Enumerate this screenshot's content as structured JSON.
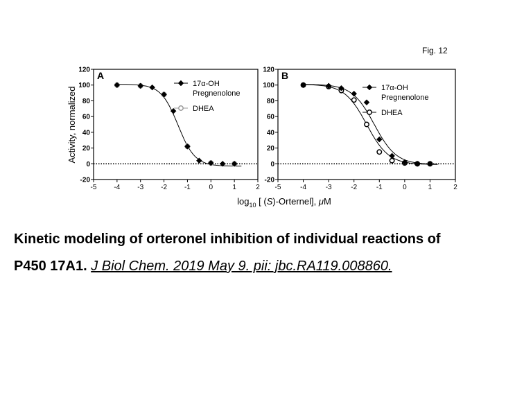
{
  "figure": {
    "label": "Fig. 12",
    "shared_ylabel": "Activity, normalized",
    "shared_xlabel_parts": {
      "prefix": "log",
      "sub": "10",
      "mid": " [ (",
      "italic": "S",
      "post": ")-Orternel], ",
      "unit_italic": "μ",
      "unit": "M"
    }
  },
  "caption": {
    "title_line1": "Kinetic modeling of orteronel inhibition of individual reactions of",
    "title_line2": "P450 17A1.",
    "citation": "J Biol Chem. 2019 May 9. pii: jbc.RA119.008860."
  },
  "chart_data": [
    {
      "type": "scatter",
      "panel_label": "A",
      "xlim": [
        -5,
        2
      ],
      "ylim": [
        -20,
        120
      ],
      "xticks": [
        "-5",
        "-4",
        "-3",
        "-2",
        "-1",
        "0",
        "1",
        "2"
      ],
      "yticks": [
        "-20",
        "0",
        "20",
        "40",
        "60",
        "80",
        "100",
        "120"
      ],
      "reference_line_y": 0,
      "legend_position": "top-right",
      "series": [
        {
          "name": "17α-OH Pregnenolone",
          "marker": "diamond-filled",
          "color": "#000000",
          "x": [
            -4,
            -3,
            -2.5,
            -2,
            -1.6,
            -1,
            -0.5,
            0,
            0.5,
            1
          ],
          "y": [
            100,
            99,
            97,
            88,
            67,
            22,
            4,
            1,
            0,
            0
          ],
          "fit_curve": {
            "top": 101,
            "bottom": -3,
            "log_ic50": -1.4,
            "hill": 1.2
          }
        },
        {
          "name": "DHEA",
          "marker": "circle-open",
          "color": "#9a9a9a",
          "x": [
            -4,
            -3,
            -2,
            -1,
            0,
            1
          ],
          "y": [
            100,
            99,
            88,
            22,
            1,
            0
          ]
        }
      ]
    },
    {
      "type": "scatter",
      "panel_label": "B",
      "xlim": [
        -5,
        2
      ],
      "ylim": [
        -20,
        120
      ],
      "xticks": [
        "-5",
        "-4",
        "-3",
        "-2",
        "-1",
        "0",
        "1",
        "2"
      ],
      "yticks": [
        "-20",
        "0",
        "20",
        "40",
        "60",
        "80",
        "100",
        "120"
      ],
      "reference_line_y": 0,
      "legend_position": "top-right",
      "series": [
        {
          "name": "17α-OH Pregnenolone",
          "marker": "diamond-filled",
          "color": "#000000",
          "x": [
            -4,
            -3,
            -2.5,
            -2,
            -1.5,
            -1,
            -0.5,
            0,
            0.5,
            1
          ],
          "y": [
            100,
            99,
            96,
            89,
            78,
            31,
            10,
            2,
            0,
            0
          ],
          "fit_curve": {
            "top": 101,
            "bottom": -1,
            "log_ic50": -1.2,
            "hill": 1.0
          }
        },
        {
          "name": "DHEA",
          "marker": "circle-open",
          "color": "#000000",
          "x": [
            -4,
            -3,
            -2.5,
            -2,
            -1.5,
            -1,
            -0.5,
            0,
            0.5,
            1
          ],
          "y": [
            100,
            98,
            93,
            81,
            50,
            15,
            4,
            1,
            0,
            0
          ],
          "fit_curve": {
            "top": 101,
            "bottom": -1,
            "log_ic50": -1.5,
            "hill": 1.0
          }
        }
      ]
    }
  ]
}
